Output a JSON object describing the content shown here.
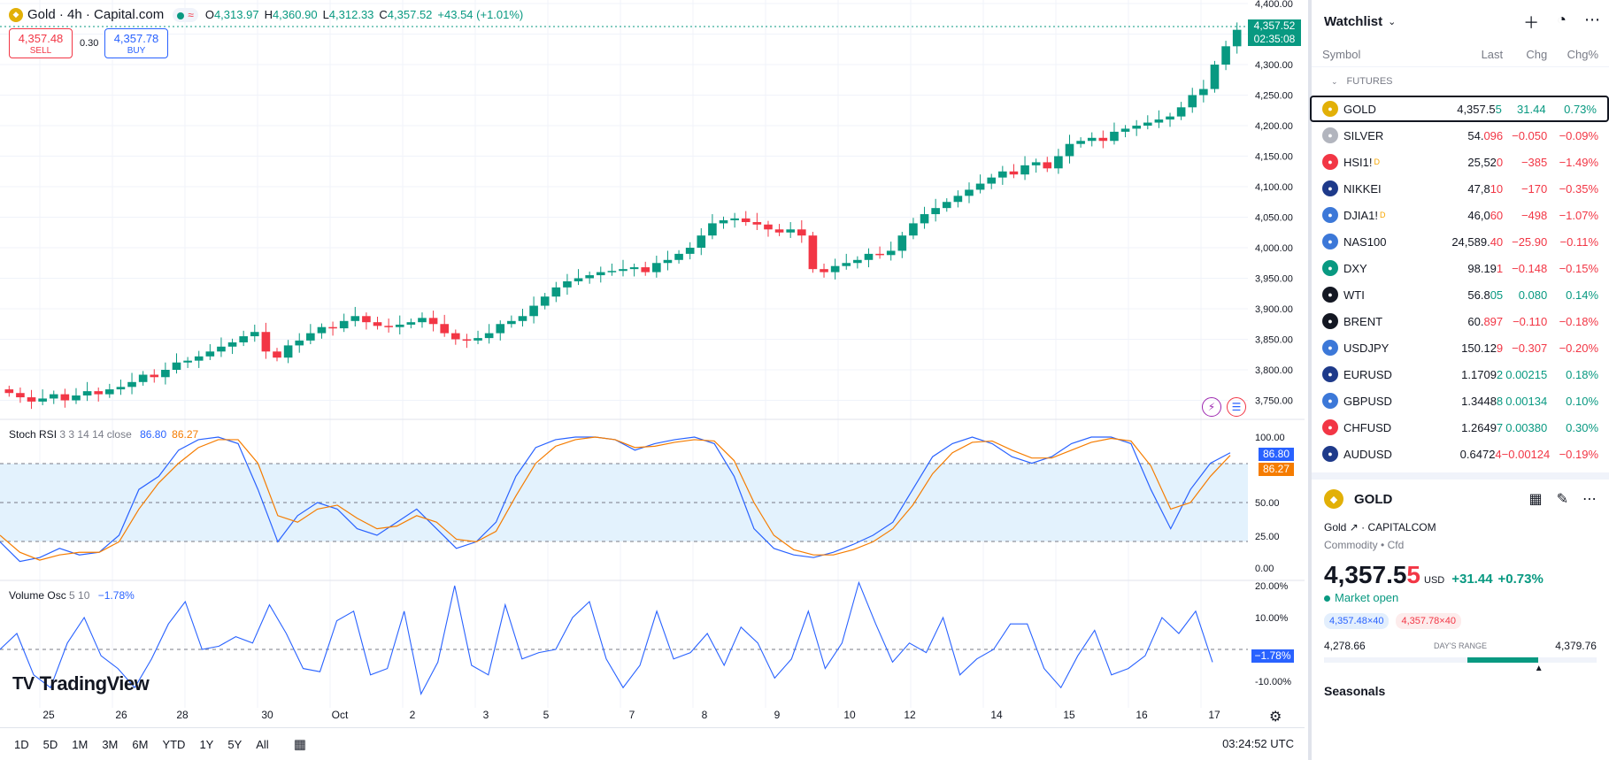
{
  "chart": {
    "symbol_title": "Gold · 4h · Capital.com",
    "ohlc": {
      "o_label": "O",
      "o": "4,313.97",
      "h_label": "H",
      "h": "4,360.90",
      "l_label": "L",
      "l": "4,312.33",
      "c_label": "C",
      "c": "4,357.52"
    },
    "change": "+43.54 (+1.01%)",
    "sell_price": "4,357.48",
    "sell_label": "SELL",
    "spread": "0.30",
    "buy_price": "4,357.78",
    "buy_label": "BUY",
    "last_price_tag": "4,357.52",
    "countdown_tag": "02:35:08",
    "price_axis": [
      "4,400.00",
      "4,350.00",
      "4,300.00",
      "4,250.00",
      "4,200.00",
      "4,150.00",
      "4,100.00",
      "4,050.00",
      "4,000.00",
      "3,950.00",
      "3,900.00",
      "3,850.00",
      "3,800.00",
      "3,750.00"
    ],
    "stoch": {
      "label": "Stoch RSI",
      "params": "3 3 14 14 close",
      "k": "86.80",
      "d": "86.27",
      "axis": [
        "100.00",
        "50.00",
        "25.00",
        "0.00"
      ],
      "k_tag": "86.80",
      "d_tag": "86.27"
    },
    "volosc": {
      "label": "Volume Osc",
      "params": "5 10",
      "value": "−1.78%",
      "axis": [
        "20.00%",
        "10.00%",
        "-10.00%"
      ],
      "tag": "−1.78%"
    },
    "time_axis": [
      "25",
      "26",
      "28",
      "30",
      "Oct",
      "2",
      "3",
      "5",
      "7",
      "8",
      "9",
      "10",
      "12",
      "14",
      "15",
      "16",
      "17"
    ],
    "logo_text": "TradingView"
  },
  "bottom_bar": {
    "ranges": [
      "1D",
      "5D",
      "1M",
      "3M",
      "6M",
      "YTD",
      "1Y",
      "5Y",
      "All"
    ],
    "clock": "03:24:52 UTC"
  },
  "watchlist": {
    "title": "Watchlist",
    "columns": {
      "symbol": "Symbol",
      "last": "Last",
      "chg": "Chg",
      "chgp": "Chg%"
    },
    "section": "FUTURES",
    "rows": [
      {
        "symbol": "GOLD",
        "last": "4,357.5",
        "last_tail": "5",
        "chg": "31.44",
        "chgp": "0.73%",
        "dir": "pos",
        "icon_color": "#e2b007",
        "icon": "gold-icon",
        "sup": ""
      },
      {
        "symbol": "SILVER",
        "last": "54.",
        "last_tail": "096",
        "chg": "−0.050",
        "chgp": "−0.09%",
        "dir": "neg",
        "icon_color": "#b2b5be",
        "icon": "silver-icon",
        "sup": ""
      },
      {
        "symbol": "HSI1!",
        "last": "25,52",
        "last_tail": "0",
        "chg": "−385",
        "chgp": "−1.49%",
        "dir": "neg",
        "icon_color": "#f23645",
        "icon": "hsi-icon",
        "sup": "D"
      },
      {
        "symbol": "NIKKEI",
        "last": "47,8",
        "last_tail": "10",
        "chg": "−170",
        "chgp": "−0.35%",
        "dir": "neg",
        "icon_color": "#1e3a8a",
        "icon": "nikkei-icon",
        "sup": ""
      },
      {
        "symbol": "DJIA1!",
        "last": "46,0",
        "last_tail": "60",
        "chg": "−498",
        "chgp": "−1.07%",
        "dir": "neg",
        "icon_color": "#3c78d8",
        "icon": "us-flag-icon",
        "sup": "D"
      },
      {
        "symbol": "NAS100",
        "last": "24,589.",
        "last_tail": "40",
        "chg": "−25.90",
        "chgp": "−0.11%",
        "dir": "neg",
        "icon_color": "#3c78d8",
        "icon": "us-flag-icon",
        "sup": ""
      },
      {
        "symbol": "DXY",
        "last": "98.19",
        "last_tail": "1",
        "chg": "−0.148",
        "chgp": "−0.15%",
        "dir": "neg",
        "icon_color": "#089981",
        "icon": "dollar-icon",
        "sup": ""
      },
      {
        "symbol": "WTI",
        "last": "56.8",
        "last_tail": "05",
        "chg": "0.080",
        "chgp": "0.14%",
        "dir": "pos",
        "icon_color": "#131722",
        "icon": "oil-icon",
        "sup": ""
      },
      {
        "symbol": "BRENT",
        "last": "60.",
        "last_tail": "897",
        "chg": "−0.110",
        "chgp": "−0.18%",
        "dir": "neg",
        "icon_color": "#131722",
        "icon": "oil-icon",
        "sup": ""
      },
      {
        "symbol": "USDJPY",
        "last": "150.12",
        "last_tail": "9",
        "chg": "−0.307",
        "chgp": "−0.20%",
        "dir": "neg",
        "icon_color": "#3c78d8",
        "icon": "us-jp-flag-icon",
        "sup": ""
      },
      {
        "symbol": "EURUSD",
        "last": "1.1709",
        "last_tail": "2",
        "chg": "0.00215",
        "chgp": "0.18%",
        "dir": "pos",
        "icon_color": "#1e3a8a",
        "icon": "eu-us-flag-icon",
        "sup": ""
      },
      {
        "symbol": "GBPUSD",
        "last": "1.3448",
        "last_tail": "8",
        "chg": "0.00134",
        "chgp": "0.10%",
        "dir": "pos",
        "icon_color": "#3c78d8",
        "icon": "gb-us-flag-icon",
        "sup": ""
      },
      {
        "symbol": "CHFUSD",
        "last": "1.2649",
        "last_tail": "7",
        "chg": "0.00380",
        "chgp": "0.30%",
        "dir": "pos",
        "icon_color": "#f23645",
        "icon": "ch-us-flag-icon",
        "sup": ""
      },
      {
        "symbol": "AUDUSD",
        "last": "0.6472",
        "last_tail": "4",
        "chg": "−0.00124",
        "chgp": "−0.19%",
        "dir": "neg",
        "icon_color": "#1e3a8a",
        "icon": "au-us-flag-icon",
        "sup": ""
      }
    ]
  },
  "details": {
    "symbol": "GOLD",
    "name": "Gold",
    "exchange": "CAPITALCOM",
    "type": "Commodity",
    "subtype": "Cfd",
    "price": "4,357.5",
    "price_tail": "5",
    "currency": "USD",
    "change": "+31.44",
    "change_pct": "+0.73%",
    "market_status": "Market open",
    "bid": "4,357.48×40",
    "ask": "4,357.78×40",
    "range_low": "4,278.66",
    "range_label": "DAY'S RANGE",
    "range_high": "4,379.76",
    "range_position": 0.78,
    "seasonals": "Seasonals"
  },
  "colors": {
    "up": "#089981",
    "down": "#f23645",
    "blue": "#2962ff",
    "orange": "#f57c00",
    "stoch_band": "#e3f2fd"
  }
}
